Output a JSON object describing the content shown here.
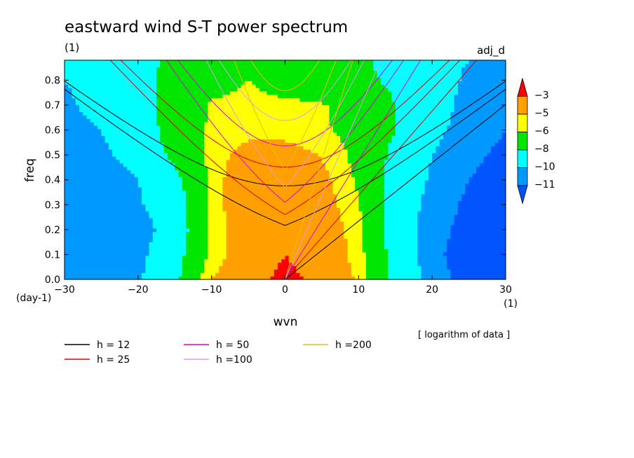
{
  "chart_data": {
    "type": "heatmap",
    "title": "eastward wind S-T power spectrum",
    "units_note": "(1)",
    "run_label": "adj_d",
    "xlabel": "wvn",
    "ylabel": "freq",
    "x_unit": "(1)",
    "y_unit": "(day-1)",
    "xlim": [
      -30,
      30
    ],
    "ylim": [
      0,
      0.88
    ],
    "xticks": [
      -30,
      -20,
      -10,
      0,
      10,
      20,
      30
    ],
    "yticks": [
      0.0,
      0.1,
      0.2,
      0.3,
      0.4,
      0.5,
      0.6,
      0.7,
      0.8
    ],
    "ytick_labels": [
      "0.0",
      "0.1",
      "0.2",
      "0.3",
      "0.4",
      "0.5",
      "0.6",
      "0.7",
      "0.8"
    ],
    "colorbar": {
      "labels": [
        "-3",
        "-5",
        "-6",
        "-8",
        "-10",
        "-11"
      ],
      "colors": [
        "#ff0000",
        "#ffa000",
        "#ffff00",
        "#00e600",
        "#00ffff",
        "#0099ff",
        "#0055ff"
      ]
    },
    "note": "[ logarithm of data ]",
    "field": {
      "levels": [
        -11,
        -10,
        -8,
        -6,
        -5,
        -3
      ],
      "colors": [
        "#0055ff",
        "#0099ff",
        "#00ffff",
        "#00e600",
        "#ffff00",
        "#ffa000",
        "#ff0000"
      ],
      "grid_x": [
        -30,
        -25,
        -20,
        -15,
        -10,
        -5,
        0,
        5,
        10,
        15,
        20,
        25,
        30
      ],
      "grid_y": [
        0.0,
        0.1,
        0.2,
        0.3,
        0.4,
        0.5,
        0.6,
        0.7,
        0.8,
        0.88
      ],
      "z": [
        [
          -10.2,
          -10.6,
          -10.2,
          -8.5,
          -5.0,
          -3.8,
          -2.5,
          -3.5,
          -5.2,
          -8.5,
          -10.6,
          -11.4,
          -11.8
        ],
        [
          -10.3,
          -10.7,
          -10.4,
          -8.8,
          -5.6,
          -4.2,
          -3.0,
          -3.9,
          -5.5,
          -8.8,
          -10.8,
          -11.4,
          -11.8
        ],
        [
          -10.5,
          -10.9,
          -10.7,
          -9.2,
          -5.8,
          -3.9,
          -3.2,
          -4.0,
          -5.6,
          -8.9,
          -10.7,
          -11.3,
          -11.7
        ],
        [
          -10.8,
          -11.0,
          -10.2,
          -9.0,
          -5.6,
          -3.8,
          -3.3,
          -4.3,
          -5.9,
          -9.0,
          -10.5,
          -11.2,
          -11.6
        ],
        [
          -11.0,
          -10.6,
          -10.0,
          -8.6,
          -5.7,
          -3.6,
          -3.5,
          -4.6,
          -6.2,
          -8.8,
          -10.2,
          -11.0,
          -11.4
        ],
        [
          -10.6,
          -10.2,
          -9.6,
          -7.5,
          -5.6,
          -4.4,
          -4.3,
          -5.1,
          -6.4,
          -8.5,
          -10.0,
          -10.8,
          -11.2
        ],
        [
          -10.2,
          -10.0,
          -9.3,
          -7.0,
          -5.8,
          -5.4,
          -5.5,
          -5.8,
          -6.5,
          -8.0,
          -9.6,
          -10.6,
          -11.0
        ],
        [
          -10.1,
          -9.8,
          -9.0,
          -6.8,
          -5.9,
          -5.7,
          -5.8,
          -5.9,
          -6.6,
          -8.0,
          -9.4,
          -10.4,
          -10.8
        ],
        [
          -10.0,
          -9.8,
          -8.8,
          -7.2,
          -6.4,
          -6.0,
          -6.5,
          -6.7,
          -7.6,
          -8.3,
          -9.4,
          -10.2,
          -10.4
        ],
        [
          -9.8,
          -9.7,
          -8.6,
          -7.6,
          -7.2,
          -6.8,
          -7.0,
          -7.8,
          -7.8,
          -8.4,
          -9.6,
          -10.0,
          -10.2
        ]
      ]
    },
    "dispersion_curves": [
      {
        "name": "h = 12",
        "h": 12,
        "color": "#000000"
      },
      {
        "name": "h = 25",
        "h": 25,
        "color": "#dd0000"
      },
      {
        "name": "h = 50",
        "h": 50,
        "color": "#e000e0"
      },
      {
        "name": "h =100",
        "h": 100,
        "color": "#d8a0e8"
      },
      {
        "name": "h =200",
        "h": 200,
        "color": "#e8c000"
      }
    ]
  }
}
